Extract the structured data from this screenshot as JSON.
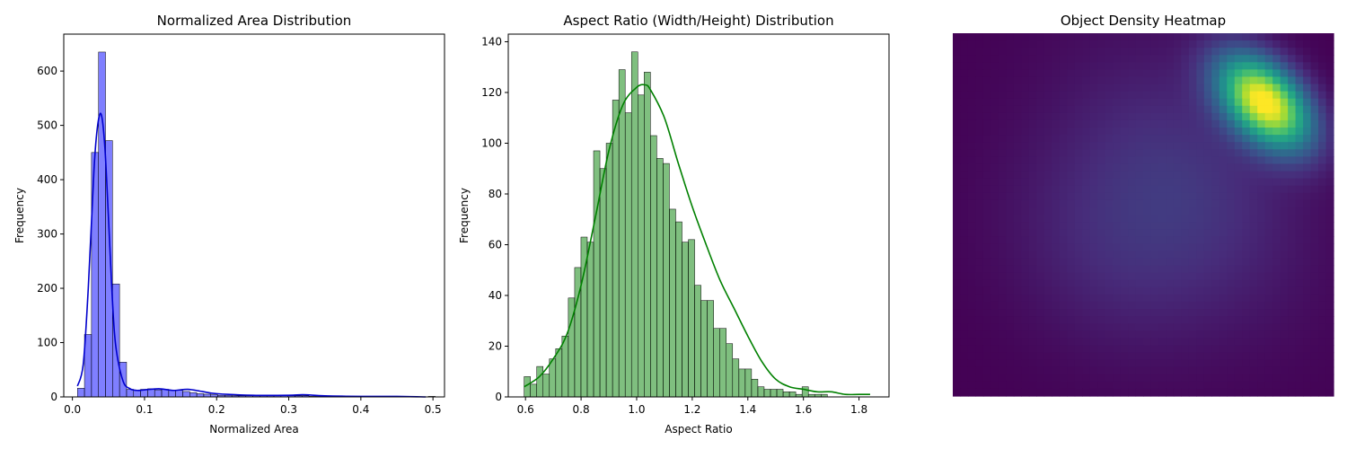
{
  "chart_data": [
    {
      "type": "bar",
      "title": "Normalized Area Distribution",
      "xlabel": "Normalized Area",
      "ylabel": "Frequency",
      "xlim": [
        -0.012,
        0.516
      ],
      "ylim": [
        0,
        668
      ],
      "xticks": [
        0.0,
        0.1,
        0.2,
        0.3,
        0.4,
        0.5
      ],
      "xtick_labels": [
        "0.0",
        "0.1",
        "0.2",
        "0.3",
        "0.4",
        "0.5"
      ],
      "yticks": [
        0,
        100,
        200,
        300,
        400,
        500,
        600
      ],
      "ytick_labels": [
        "0",
        "100",
        "200",
        "300",
        "400",
        "500",
        "600"
      ],
      "bar_color": "#0000ff",
      "kde_color": "#0000cc",
      "bins_start": 0.007,
      "bin_width": 0.00973,
      "values": [
        16,
        115,
        450,
        635,
        472,
        208,
        64,
        14,
        12,
        14,
        15,
        13,
        14,
        12,
        12,
        10,
        8,
        6,
        5,
        4,
        3,
        3,
        2,
        2,
        2,
        2,
        2,
        2,
        3,
        3,
        2,
        2,
        2,
        1,
        1,
        1,
        1,
        1,
        1,
        1,
        1,
        0,
        0,
        0,
        0,
        0,
        0,
        0,
        0,
        0,
        1,
        0
      ],
      "kde": {
        "x": [
          0.007,
          0.015,
          0.022,
          0.03,
          0.035,
          0.04,
          0.045,
          0.05,
          0.055,
          0.06,
          0.07,
          0.08,
          0.09,
          0.1,
          0.12,
          0.14,
          0.16,
          0.18,
          0.2,
          0.25,
          0.3,
          0.32,
          0.35,
          0.4,
          0.45,
          0.49
        ],
        "y": [
          20,
          60,
          200,
          420,
          500,
          520,
          460,
          330,
          190,
          95,
          30,
          15,
          12,
          13,
          15,
          12,
          14,
          10,
          6,
          3,
          3,
          4,
          2,
          1,
          1,
          0
        ]
      }
    },
    {
      "type": "bar",
      "title": "Aspect Ratio (Width/Height) Distribution",
      "xlabel": "Aspect Ratio",
      "ylabel": "Frequency",
      "xlim": [
        0.538,
        1.908
      ],
      "ylim": [
        0,
        143
      ],
      "xticks": [
        0.6,
        0.8,
        1.0,
        1.2,
        1.4,
        1.6,
        1.8
      ],
      "xtick_labels": [
        "0.6",
        "0.8",
        "1.0",
        "1.2",
        "1.4",
        "1.6",
        "1.8"
      ],
      "yticks": [
        0,
        20,
        40,
        60,
        80,
        100,
        120,
        140
      ],
      "ytick_labels": [
        "0",
        "20",
        "40",
        "60",
        "80",
        "100",
        "120",
        "140"
      ],
      "bar_color": "#008000",
      "kde_color": "#008000",
      "bins_start": 0.595,
      "bin_width": 0.02273,
      "values": [
        8,
        5,
        12,
        9,
        15,
        19,
        24,
        39,
        51,
        63,
        61,
        97,
        90,
        100,
        117,
        129,
        112,
        136,
        119,
        128,
        103,
        94,
        92,
        74,
        69,
        61,
        62,
        44,
        38,
        38,
        27,
        27,
        21,
        15,
        11,
        11,
        7,
        4,
        3,
        3,
        3,
        2,
        2,
        1,
        4,
        1,
        1,
        1,
        0,
        0,
        0,
        0,
        0,
        0,
        0
      ],
      "kde": {
        "x": [
          0.595,
          0.65,
          0.7,
          0.75,
          0.8,
          0.85,
          0.9,
          0.95,
          1.0,
          1.03,
          1.05,
          1.1,
          1.15,
          1.2,
          1.25,
          1.3,
          1.35,
          1.4,
          1.45,
          1.5,
          1.55,
          1.6,
          1.65,
          1.7,
          1.75,
          1.8,
          1.84
        ],
        "y": [
          4,
          8,
          15,
          25,
          44,
          70,
          97,
          115,
          122,
          123,
          121,
          110,
          92,
          75,
          60,
          46,
          35,
          24,
          14,
          7,
          4,
          3,
          2,
          2,
          1,
          1,
          1
        ]
      }
    },
    {
      "type": "heatmap",
      "title": "Object Density Heatmap",
      "colormap": "viridis",
      "axes": "off"
    }
  ]
}
